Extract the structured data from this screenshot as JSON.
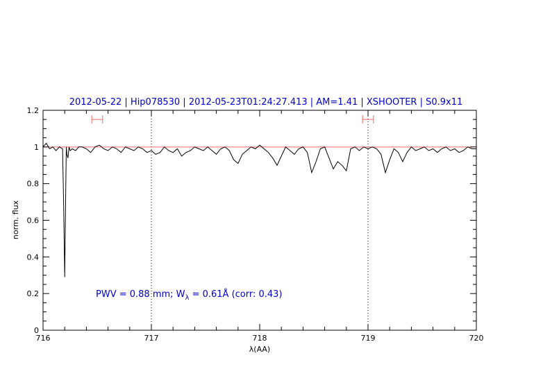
{
  "chart_data": {
    "type": "line",
    "title": "2012-05-22 | Hip078530 | 2012-05-23T01:24:27.413 | AM=1.41 | XSHOOTER | S0.9x11",
    "xlabel": "λ(AA)",
    "ylabel": "norm. flux",
    "xlim": [
      716,
      720
    ],
    "ylim": [
      0,
      1.2
    ],
    "x_ticks": [
      716,
      717,
      718,
      719,
      720
    ],
    "y_ticks": [
      0,
      0.2,
      0.4,
      0.6,
      0.8,
      1,
      1.2
    ],
    "x_tick_labels": [
      "716",
      "717",
      "718",
      "719",
      "720"
    ],
    "y_tick_labels": [
      "0",
      "0.2",
      "0.4",
      "0.6",
      "0.8",
      "1",
      "1.2"
    ],
    "grid": false,
    "reference_line": {
      "y": 1.0,
      "color": "#ff6666"
    },
    "vertical_markers": [
      717.0,
      719.0
    ],
    "intervals": [
      {
        "x0": 716.45,
        "x1": 716.55,
        "y": 1.15
      },
      {
        "x0": 718.95,
        "x1": 719.05,
        "y": 1.15
      }
    ],
    "annotation": {
      "prefix": "PWV = 0.88 mm; W",
      "sub": "λ",
      "suffix": " = 0.61Å (corr: 0.43)"
    },
    "series": [
      {
        "color": "#000000",
        "x": [
          716.0,
          716.03,
          716.06,
          716.09,
          716.12,
          716.15,
          716.18,
          716.19,
          716.2,
          716.21,
          716.215,
          716.22,
          716.23,
          716.24,
          716.25,
          716.27,
          716.3,
          716.33,
          716.36,
          716.4,
          716.44,
          716.48,
          716.52,
          716.56,
          716.6,
          716.64,
          716.68,
          716.72,
          716.76,
          716.8,
          716.84,
          716.88,
          716.92,
          716.96,
          717.0,
          717.04,
          717.08,
          717.12,
          717.16,
          717.2,
          717.24,
          717.28,
          717.32,
          717.36,
          717.4,
          717.44,
          717.48,
          717.52,
          717.56,
          717.6,
          717.64,
          717.68,
          717.72,
          717.76,
          717.8,
          717.84,
          717.88,
          717.92,
          717.96,
          718.0,
          718.04,
          718.08,
          718.12,
          718.16,
          718.2,
          718.24,
          718.28,
          718.32,
          718.36,
          718.4,
          718.44,
          718.48,
          718.52,
          718.56,
          718.6,
          718.64,
          718.68,
          718.72,
          718.76,
          718.8,
          718.84,
          718.88,
          718.92,
          718.96,
          719.0,
          719.04,
          719.08,
          719.12,
          719.16,
          719.2,
          719.24,
          719.28,
          719.32,
          719.36,
          719.4,
          719.44,
          719.48,
          719.52,
          719.56,
          719.6,
          719.64,
          719.68,
          719.72,
          719.76,
          719.8,
          719.84,
          719.88,
          719.92,
          719.96,
          720.0
        ],
        "y": [
          1.0,
          1.02,
          0.99,
          1.0,
          0.98,
          1.0,
          0.99,
          0.7,
          0.29,
          0.8,
          1.0,
          0.96,
          0.94,
          1.0,
          0.98,
          0.99,
          0.98,
          1.0,
          1.0,
          0.99,
          0.97,
          1.0,
          1.01,
          0.99,
          0.98,
          1.0,
          0.99,
          0.97,
          1.0,
          0.99,
          0.98,
          1.0,
          0.99,
          0.97,
          0.98,
          0.96,
          0.97,
          1.0,
          0.98,
          0.97,
          0.99,
          0.95,
          0.97,
          0.98,
          1.0,
          0.99,
          0.98,
          1.0,
          0.98,
          0.96,
          0.99,
          1.0,
          0.98,
          0.93,
          0.91,
          0.96,
          0.98,
          1.0,
          0.99,
          1.01,
          0.99,
          0.97,
          0.94,
          0.9,
          0.95,
          1.0,
          0.98,
          0.96,
          0.99,
          1.0,
          0.97,
          0.86,
          0.92,
          0.99,
          1.0,
          0.94,
          0.88,
          0.92,
          0.9,
          0.87,
          0.99,
          1.0,
          0.98,
          1.0,
          0.99,
          1.0,
          0.99,
          0.96,
          0.86,
          0.93,
          0.99,
          0.97,
          0.92,
          0.97,
          1.0,
          0.98,
          0.99,
          1.0,
          0.98,
          0.99,
          0.97,
          0.99,
          1.0,
          0.98,
          0.99,
          0.97,
          0.98,
          1.0,
          0.99,
          0.99
        ]
      }
    ]
  }
}
